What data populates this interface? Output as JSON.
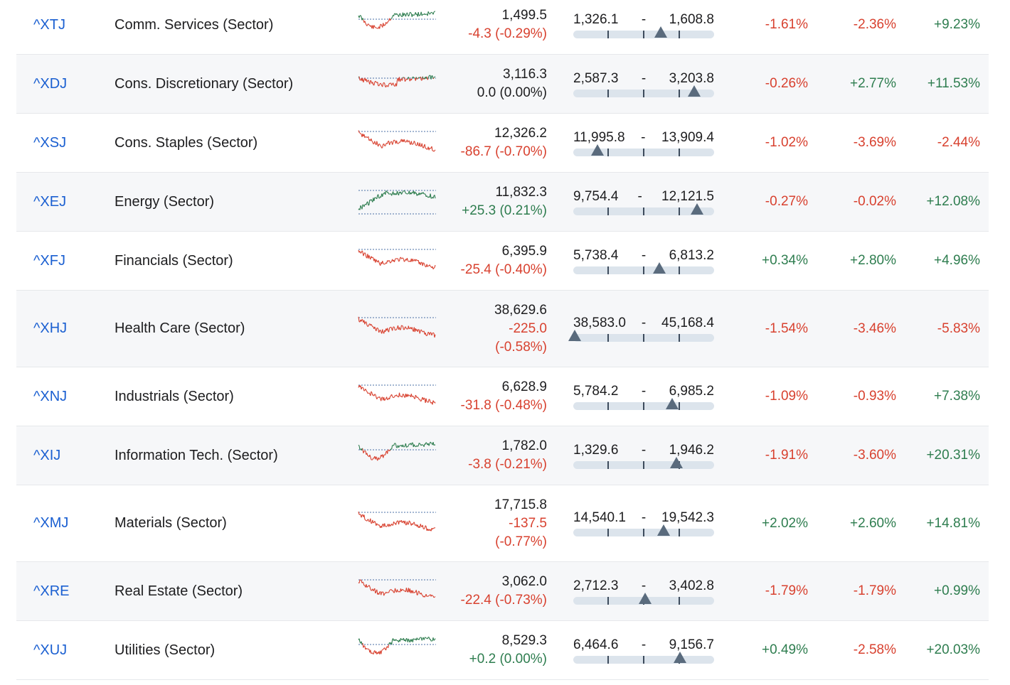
{
  "colors": {
    "negative": "#d8412f",
    "positive": "#2e7d4f",
    "link": "#1a5fd1",
    "baseline": "#4a6fa5"
  },
  "rows": [
    {
      "symbol": "^XTJ",
      "name": "Comm. Services (Sector)",
      "last": "1,499.5",
      "change": "-4.3 (-0.29%)",
      "change_dir": "neg",
      "range_low": "1,326.1",
      "range_sep": "-",
      "range_high": "1,608.8",
      "range_pos": 0.62,
      "pct1": "-1.61%",
      "pct2": "-2.36%",
      "pct3": "+9.23%",
      "spark": "mixed-up"
    },
    {
      "symbol": "^XDJ",
      "name": "Cons. Discretionary (Sector)",
      "last": "3,116.3",
      "change": "0.0 (0.00%)",
      "change_dir": "flat",
      "range_low": "2,587.3",
      "range_sep": "-",
      "range_high": "3,203.8",
      "range_pos": 0.86,
      "pct1": "-0.26%",
      "pct2": "+2.77%",
      "pct3": "+11.53%",
      "spark": "mixed-flat"
    },
    {
      "symbol": "^XSJ",
      "name": "Cons. Staples (Sector)",
      "last": "12,326.2",
      "change": "-86.7 (-0.70%)",
      "change_dir": "neg",
      "range_low": "11,995.8",
      "range_sep": "-",
      "range_high": "13,909.4",
      "range_pos": 0.17,
      "pct1": "-1.02%",
      "pct2": "-3.69%",
      "pct3": "-2.44%",
      "spark": "down"
    },
    {
      "symbol": "^XEJ",
      "name": "Energy (Sector)",
      "last": "11,832.3",
      "change": "+25.3 (0.21%)",
      "change_dir": "pos",
      "range_low": "9,754.4",
      "range_sep": "-",
      "range_high": "12,121.5",
      "range_pos": 0.88,
      "pct1": "-0.27%",
      "pct2": "-0.02%",
      "pct3": "+12.08%",
      "spark": "up"
    },
    {
      "symbol": "^XFJ",
      "name": "Financials (Sector)",
      "last": "6,395.9",
      "change": "-25.4 (-0.40%)",
      "change_dir": "neg",
      "range_low": "5,738.4",
      "range_sep": "-",
      "range_high": "6,813.2",
      "range_pos": 0.61,
      "pct1": "+0.34%",
      "pct2": "+2.80%",
      "pct3": "+4.96%",
      "spark": "down"
    },
    {
      "symbol": "^XHJ",
      "name": "Health Care (Sector)",
      "last": "38,629.6",
      "change": "-225.0",
      "change2": "(-0.58%)",
      "change_dir": "neg",
      "range_low": "38,583.0",
      "range_sep": "-",
      "range_high": "45,168.4",
      "range_pos": 0.01,
      "pct1": "-1.54%",
      "pct2": "-3.46%",
      "pct3": "-5.83%",
      "spark": "down",
      "tall": true
    },
    {
      "symbol": "^XNJ",
      "name": "Industrials (Sector)",
      "last": "6,628.9",
      "change": "-31.8 (-0.48%)",
      "change_dir": "neg",
      "range_low": "5,784.2",
      "range_sep": "-",
      "range_high": "6,985.2",
      "range_pos": 0.7,
      "pct1": "-1.09%",
      "pct2": "-0.93%",
      "pct3": "+7.38%",
      "spark": "down"
    },
    {
      "symbol": "^XIJ",
      "name": "Information Tech. (Sector)",
      "last": "1,782.0",
      "change": "-3.8 (-0.21%)",
      "change_dir": "neg",
      "range_low": "1,329.6",
      "range_sep": "-",
      "range_high": "1,946.2",
      "range_pos": 0.73,
      "pct1": "-1.91%",
      "pct2": "-3.60%",
      "pct3": "+20.31%",
      "spark": "mixed-up"
    },
    {
      "symbol": "^XMJ",
      "name": "Materials (Sector)",
      "last": "17,715.8",
      "change": "-137.5",
      "change2": "(-0.77%)",
      "change_dir": "neg",
      "range_low": "14,540.1",
      "range_sep": "-",
      "range_high": "19,542.3",
      "range_pos": 0.64,
      "pct1": "+2.02%",
      "pct2": "+2.60%",
      "pct3": "+14.81%",
      "spark": "down",
      "tall": true
    },
    {
      "symbol": "^XRE",
      "name": "Real Estate (Sector)",
      "last": "3,062.0",
      "change": "-22.4 (-0.73%)",
      "change_dir": "neg",
      "range_low": "2,712.3",
      "range_sep": "-",
      "range_high": "3,402.8",
      "range_pos": 0.51,
      "pct1": "-1.79%",
      "pct2": "-1.79%",
      "pct3": "+0.99%",
      "spark": "down"
    },
    {
      "symbol": "^XUJ",
      "name": "Utilities (Sector)",
      "last": "8,529.3",
      "change": "+0.2 (0.00%)",
      "change_dir": "pos",
      "range_low": "6,464.6",
      "range_sep": "-",
      "range_high": "9,156.7",
      "range_pos": 0.76,
      "pct1": "+0.49%",
      "pct2": "-2.58%",
      "pct3": "+20.03%",
      "spark": "mixed-up"
    }
  ]
}
